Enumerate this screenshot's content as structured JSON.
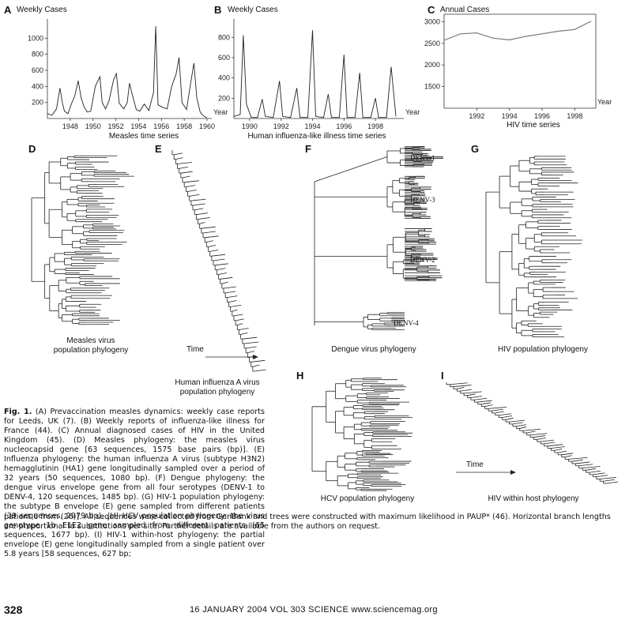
{
  "panels": {
    "A": {
      "letter": "A",
      "ylabel": "Weekly Cases",
      "xlabel": "Year",
      "caption": "Measles time series"
    },
    "B": {
      "letter": "B",
      "ylabel": "Weekly Cases",
      "xlabel": "Year",
      "caption": "Human influenza-like illness time series"
    },
    "C": {
      "letter": "C",
      "ylabel": "Annual Cases",
      "xlabel": "Year",
      "caption": "HIV time series"
    },
    "D": {
      "letter": "D",
      "caption_line1": "Measles virus",
      "caption_line2": "population phylogeny"
    },
    "E": {
      "letter": "E",
      "arrow_label": "Time",
      "caption_line1": "Human influenza A virus",
      "caption_line2": "population phylogeny"
    },
    "F": {
      "letter": "F",
      "caption": "Dengue virus phylogeny",
      "labels": [
        "DENV-1",
        "DENV-3",
        "DENV-2",
        "DENV-4"
      ]
    },
    "G": {
      "letter": "G",
      "caption": "HIV population phylogeny"
    },
    "H": {
      "letter": "H",
      "caption": "HCV population phylogeny"
    },
    "I": {
      "letter": "I",
      "arrow_label": "Time",
      "caption": "HIV within host phylogeny"
    }
  },
  "chart_data": [
    {
      "panel": "A",
      "type": "line",
      "ylabel": "Weekly Cases",
      "xlabel": "Year",
      "y_ticks": [
        "200",
        "400",
        "600",
        "800",
        "1000"
      ],
      "x_ticks": [
        "1948",
        "1950",
        "1952",
        "1954",
        "1956",
        "1958",
        "1960"
      ],
      "ylim": [
        0,
        1200
      ],
      "xlim": [
        1946,
        1960
      ],
      "x": [
        1946.0,
        1946.4,
        1946.8,
        1947.1,
        1947.3,
        1947.5,
        1947.8,
        1948.1,
        1948.4,
        1948.7,
        1948.95,
        1949.2,
        1949.5,
        1949.8,
        1950.2,
        1950.6,
        1950.8,
        1951.1,
        1951.4,
        1951.8,
        1952.05,
        1952.3,
        1952.7,
        1953.0,
        1953.2,
        1953.4,
        1953.8,
        1954.1,
        1954.5,
        1954.9,
        1955.3,
        1955.5,
        1955.7,
        1956.1,
        1956.5,
        1956.9,
        1957.3,
        1957.55,
        1957.8,
        1958.2,
        1958.6,
        1958.85,
        1959.1,
        1959.4,
        1959.7,
        1960.0
      ],
      "y": [
        60,
        40,
        120,
        380,
        200,
        90,
        60,
        180,
        280,
        470,
        260,
        150,
        80,
        90,
        400,
        520,
        200,
        120,
        220,
        480,
        560,
        190,
        120,
        200,
        440,
        320,
        110,
        90,
        180,
        100,
        320,
        1150,
        170,
        140,
        120,
        400,
        560,
        760,
        200,
        110,
        470,
        690,
        260,
        80,
        30,
        10
      ]
    },
    {
      "panel": "B",
      "type": "line",
      "ylabel": "Weekly Cases",
      "xlabel": "Year",
      "y_ticks": [
        "200",
        "400",
        "600",
        "800"
      ],
      "x_ticks": [
        "1990",
        "1992",
        "1994",
        "1996",
        "1998"
      ],
      "xlim": [
        1989,
        1999.5
      ],
      "ylim": [
        0,
        950
      ],
      "x": [
        1989.0,
        1989.4,
        1989.6,
        1989.8,
        1990.1,
        1990.5,
        1990.8,
        1991.0,
        1991.5,
        1991.9,
        1992.1,
        1992.6,
        1993.0,
        1993.2,
        1993.7,
        1994.0,
        1994.2,
        1994.7,
        1995.0,
        1995.2,
        1995.7,
        1996.0,
        1996.2,
        1996.7,
        1997.0,
        1997.2,
        1997.7,
        1998.0,
        1998.2,
        1998.7,
        1999.0,
        1999.3
      ],
      "y": [
        20,
        40,
        820,
        140,
        10,
        10,
        190,
        20,
        10,
        370,
        20,
        10,
        300,
        10,
        10,
        870,
        20,
        10,
        240,
        10,
        10,
        630,
        10,
        10,
        450,
        10,
        10,
        200,
        10,
        10,
        510,
        20
      ]
    },
    {
      "panel": "C",
      "type": "line",
      "ylabel": "Annual Cases",
      "xlabel": "Year",
      "y_ticks": [
        "1500",
        "2000",
        "2500",
        "3000"
      ],
      "x_ticks": [
        "1992",
        "1994",
        "1996",
        "1998"
      ],
      "xlim": [
        1990,
        1999
      ],
      "ylim": [
        1000,
        3100
      ],
      "x": [
        1990,
        1991,
        1992,
        1993,
        1994,
        1995,
        1996,
        1997,
        1998,
        1999
      ],
      "y": [
        2570,
        2720,
        2740,
        2620,
        2580,
        2660,
        2720,
        2780,
        2820,
        3010
      ]
    }
  ],
  "caption": {
    "fig_label": "Fig. 1.",
    "text": "(A) Prevaccination measles dynamics: weekly case reports for Leeds, UK (7). (B) Weekly reports of influenza-like illness for France (44). (C) Annual diagnosed cases of HIV in the United Kingdom (45). (D) Measles phylogeny: the measles virus nucleocapsid gene [63 sequences, 1575 base pairs (bp)]. (E) Influenza phylogeny: the human influenza A virus (subtype H3N2) hemagglutinin (HA1) gene longitudinally sampled over a period of 32 years (50 sequences, 1080 bp). (F) Dengue phylogeny: the dengue virus envelope gene from all four serotypes (DENV-1 to DENV-4, 120 sequences, 1485 bp). (G) HIV-1 population phylogeny: the subtype B envelope (E) gene sampled from different patients (39 sequences, 2979 bp). (H) HCV population phylogeny: the virus genotype 1b E1E2 gene sampled from different patients (65 sequences, 1677 bp). (I) HIV-1 within-host phylogeny: the partial envelope (E) gene longitudinally sampled from a single patient over 5.8 years [58 sequences, 627 bp;",
    "tail": "patient 6 from (26)]. All sequences were collected from GenBank and trees were constructed with maximum likelihood in PAUP* (46). Horizontal branch lengths are proportional to substitutions per site. Further details are available from the authors on request."
  },
  "footer": {
    "page_number": "328",
    "issue_line": "16 JANUARY 2004   VOL 303   SCIENCE   www.sciencemag.org"
  }
}
